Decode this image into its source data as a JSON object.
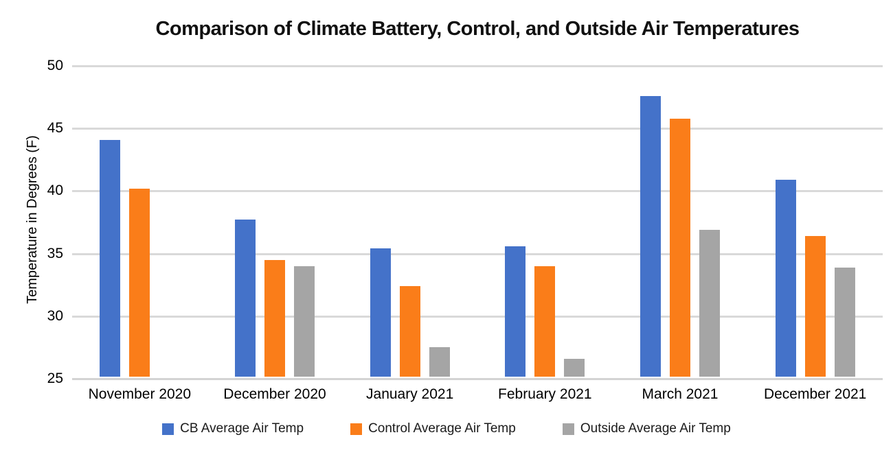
{
  "chart_data": {
    "type": "bar",
    "title": "Comparison of Climate Battery, Control, and Outside Air Temperatures",
    "xlabel": "",
    "ylabel": "Temperature in Degrees (F)",
    "ylim": [
      25,
      50
    ],
    "yticks": [
      25,
      30,
      35,
      40,
      45,
      50
    ],
    "grid": true,
    "legend_position": "bottom",
    "categories": [
      "November 2020",
      "December 2020",
      "January 2021",
      "February 2021",
      "March 2021",
      "December 2021"
    ],
    "series": [
      {
        "name": "CB Average Air Temp",
        "color": "#4472C9",
        "values": [
          44.1,
          37.7,
          35.4,
          35.6,
          47.6,
          40.9
        ]
      },
      {
        "name": "Control Average Air Temp",
        "color": "#FA7D19",
        "values": [
          40.2,
          34.5,
          32.4,
          34.0,
          45.8,
          36.4
        ]
      },
      {
        "name": "Outside Average Air Temp",
        "color": "#A5A5A5",
        "values": [
          null,
          34.0,
          27.5,
          26.6,
          36.9,
          33.9
        ]
      }
    ],
    "colors": {
      "background": "#ffffff",
      "gridline": "#d9d9d9",
      "text": "#000000"
    }
  }
}
